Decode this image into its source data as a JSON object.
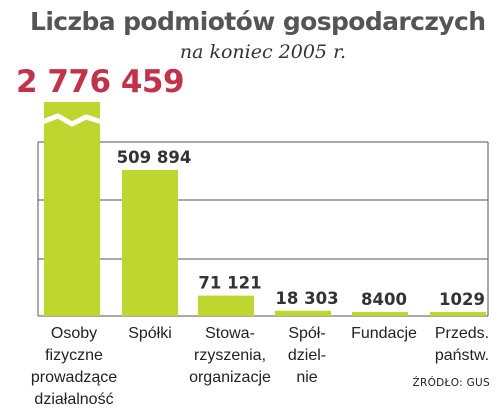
{
  "chart_data": {
    "type": "bar",
    "title": "Liczba podmiotów gospodarczych",
    "subtitle": "na koniec 2005 r.",
    "categories": [
      [
        "Osoby",
        "fizyczne",
        "prowadzące",
        "działalność"
      ],
      [
        "Spółki"
      ],
      [
        "Stowa-",
        "rzyszenia,",
        "organizacje"
      ],
      [
        "Spół-",
        "dziel-",
        "nie"
      ],
      [
        "Fundacje"
      ],
      [
        "Przeds.",
        "państw."
      ]
    ],
    "values": [
      2776459,
      509894,
      71121,
      18303,
      8400,
      1029
    ],
    "value_labels": [
      "2 776 459",
      "509 894",
      "71 121",
      "18 303",
      "8400",
      "1029"
    ],
    "ylim": [
      0,
      800000
    ],
    "broken_axis_bar": 0,
    "grid": true,
    "source": "ŹRÓDŁO: GUS",
    "colors": {
      "bar": "#bed62f",
      "highlight_value": "#c0334a"
    }
  }
}
